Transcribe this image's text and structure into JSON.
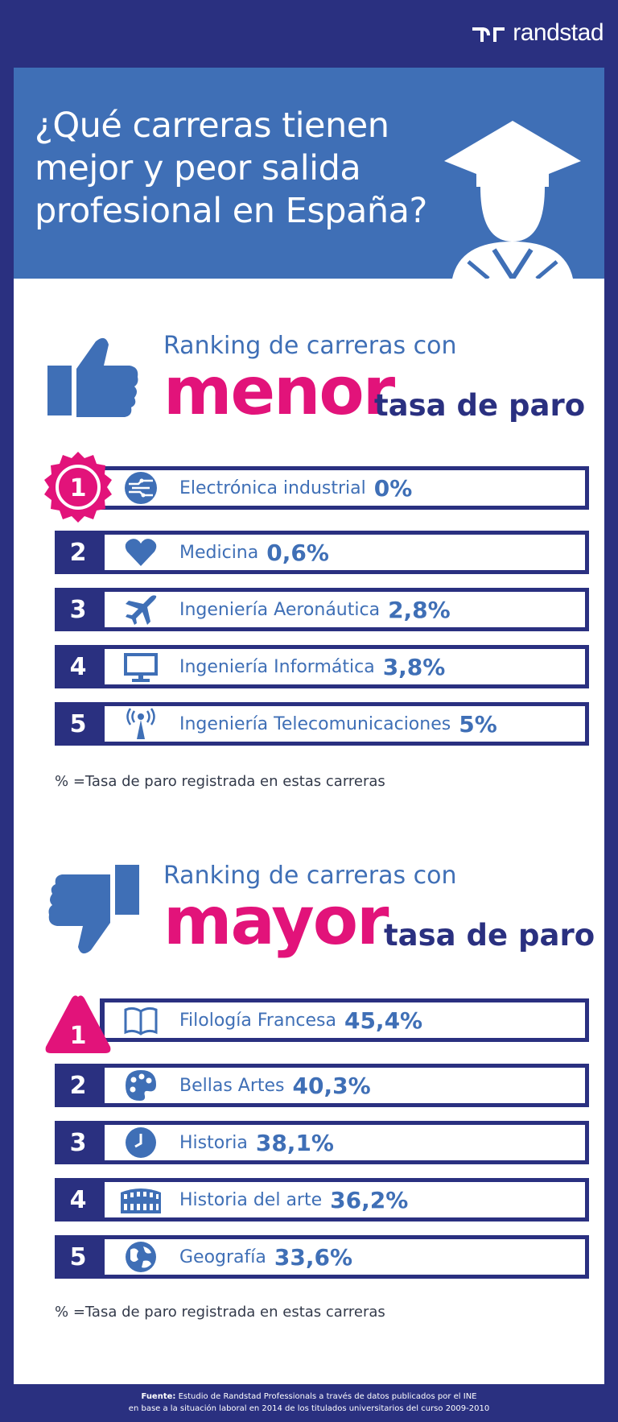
{
  "brand": {
    "name": "randstad"
  },
  "hero": {
    "title_lines": [
      "¿Qué carreras tienen",
      "mejor y peor salida",
      "profesional en España?"
    ]
  },
  "best": {
    "head_small": "Ranking de carreras con",
    "head_big": "menor",
    "head_tail": "tasa de paro",
    "items": [
      {
        "rank": "1",
        "name": "Electrónica industrial",
        "value": "0%",
        "icon": "circuit-icon"
      },
      {
        "rank": "2",
        "name": "Medicina",
        "value": "0,6%",
        "icon": "heart-icon"
      },
      {
        "rank": "3",
        "name": "Ingeniería Aeronáutica",
        "value": "2,8%",
        "icon": "airplane-icon"
      },
      {
        "rank": "4",
        "name": "Ingeniería Informática",
        "value": "3,8%",
        "icon": "monitor-icon"
      },
      {
        "rank": "5",
        "name": "Ingeniería Telecomunicaciones",
        "value": "5%",
        "icon": "antenna-icon"
      }
    ],
    "note": "% =Tasa de paro registrada en estas carreras"
  },
  "worst": {
    "head_small": "Ranking de carreras con",
    "head_big": "mayor",
    "head_tail": "tasa de paro",
    "items": [
      {
        "rank": "1",
        "name": "Filología Francesa",
        "value": "45,4%",
        "icon": "book-icon"
      },
      {
        "rank": "2",
        "name": "Bellas Artes",
        "value": "40,3%",
        "icon": "palette-icon"
      },
      {
        "rank": "3",
        "name": "Historia",
        "value": "38,1%",
        "icon": "clock-icon"
      },
      {
        "rank": "4",
        "name": "Historia del arte",
        "value": "36,2%",
        "icon": "colosseum-icon"
      },
      {
        "rank": "5",
        "name": "Geografía",
        "value": "33,6%",
        "icon": "globe-icon"
      }
    ],
    "note": "% =Tasa de paro registrada en estas carreras"
  },
  "source": {
    "label": "Fuente:",
    "line1": "Estudio de Randstad Professionals a través de datos publicados por el INE",
    "line2": "en base a la situación laboral en 2014 de los titulados universitarios del curso 2009-2010"
  },
  "colors": {
    "navy": "#2a3080",
    "blue": "#3f6fb6",
    "magenta": "#e2137a"
  }
}
